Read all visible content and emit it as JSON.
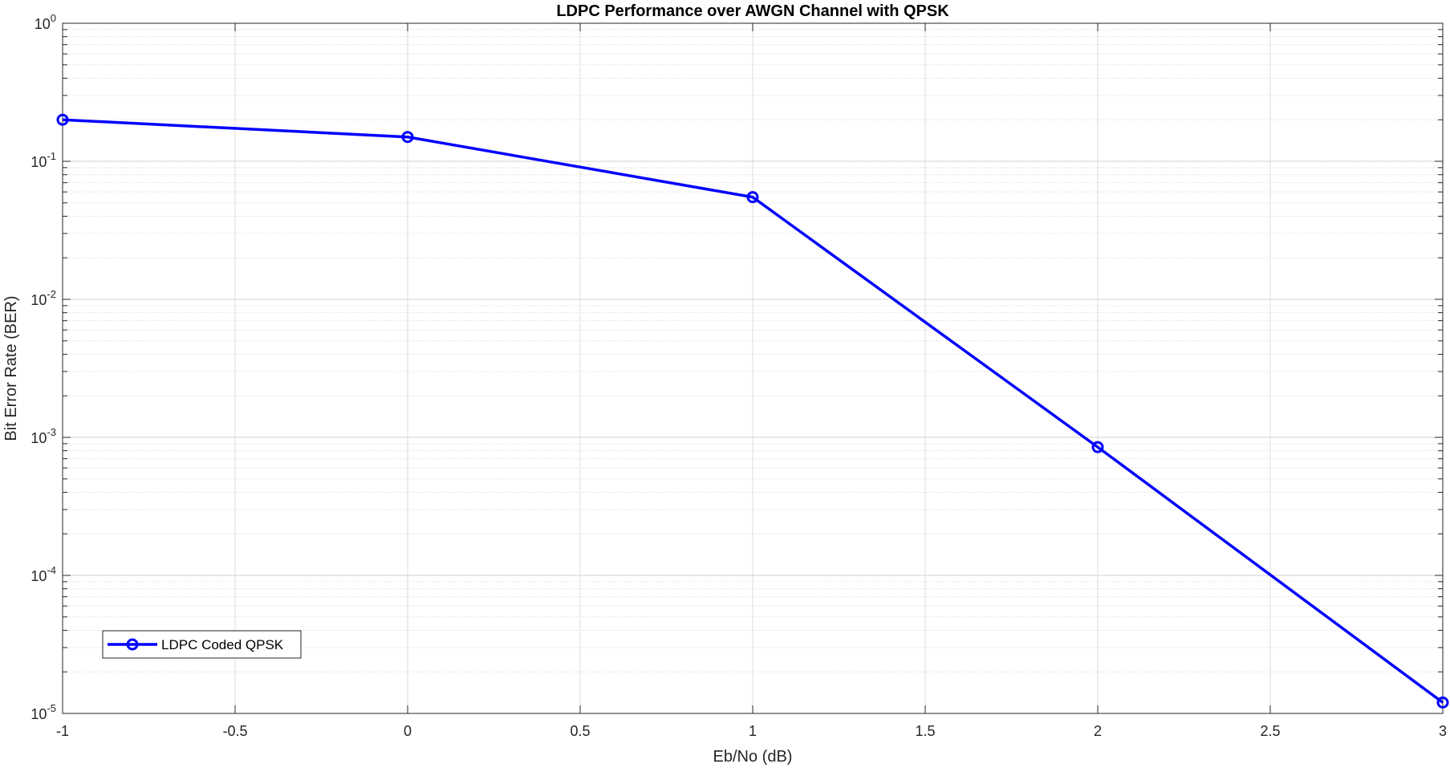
{
  "chart_data": {
    "type": "line",
    "title": "LDPC Performance over AWGN Channel with QPSK",
    "xlabel": "Eb/No (dB)",
    "ylabel": "Bit Error Rate (BER)",
    "xlim": [
      -1,
      3
    ],
    "ylim": [
      1e-05,
      1
    ],
    "yscale": "log",
    "grid": true,
    "minor_grid": true,
    "legend_position": "bottom-left",
    "x_ticks": [
      -1,
      -0.5,
      0,
      0.5,
      1,
      1.5,
      2,
      2.5,
      3
    ],
    "x_tick_labels": [
      "-1",
      "-0.5",
      "0",
      "0.5",
      "1",
      "1.5",
      "2",
      "2.5",
      "3"
    ],
    "y_ticks": [
      {
        "value": 1,
        "base": "10",
        "exp": "0"
      },
      {
        "value": 0.1,
        "base": "10",
        "exp": "-1"
      },
      {
        "value": 0.01,
        "base": "10",
        "exp": "-2"
      },
      {
        "value": 0.001,
        "base": "10",
        "exp": "-3"
      },
      {
        "value": 0.0001,
        "base": "10",
        "exp": "-4"
      },
      {
        "value": 1e-05,
        "base": "10",
        "exp": "-5"
      }
    ],
    "series": [
      {
        "name": "LDPC Coded QPSK",
        "color": "#0000ff",
        "marker": "circle",
        "x": [
          -1,
          0,
          1,
          2,
          3
        ],
        "y": [
          0.2,
          0.15,
          0.055,
          0.00085,
          1.2e-05
        ]
      }
    ]
  }
}
